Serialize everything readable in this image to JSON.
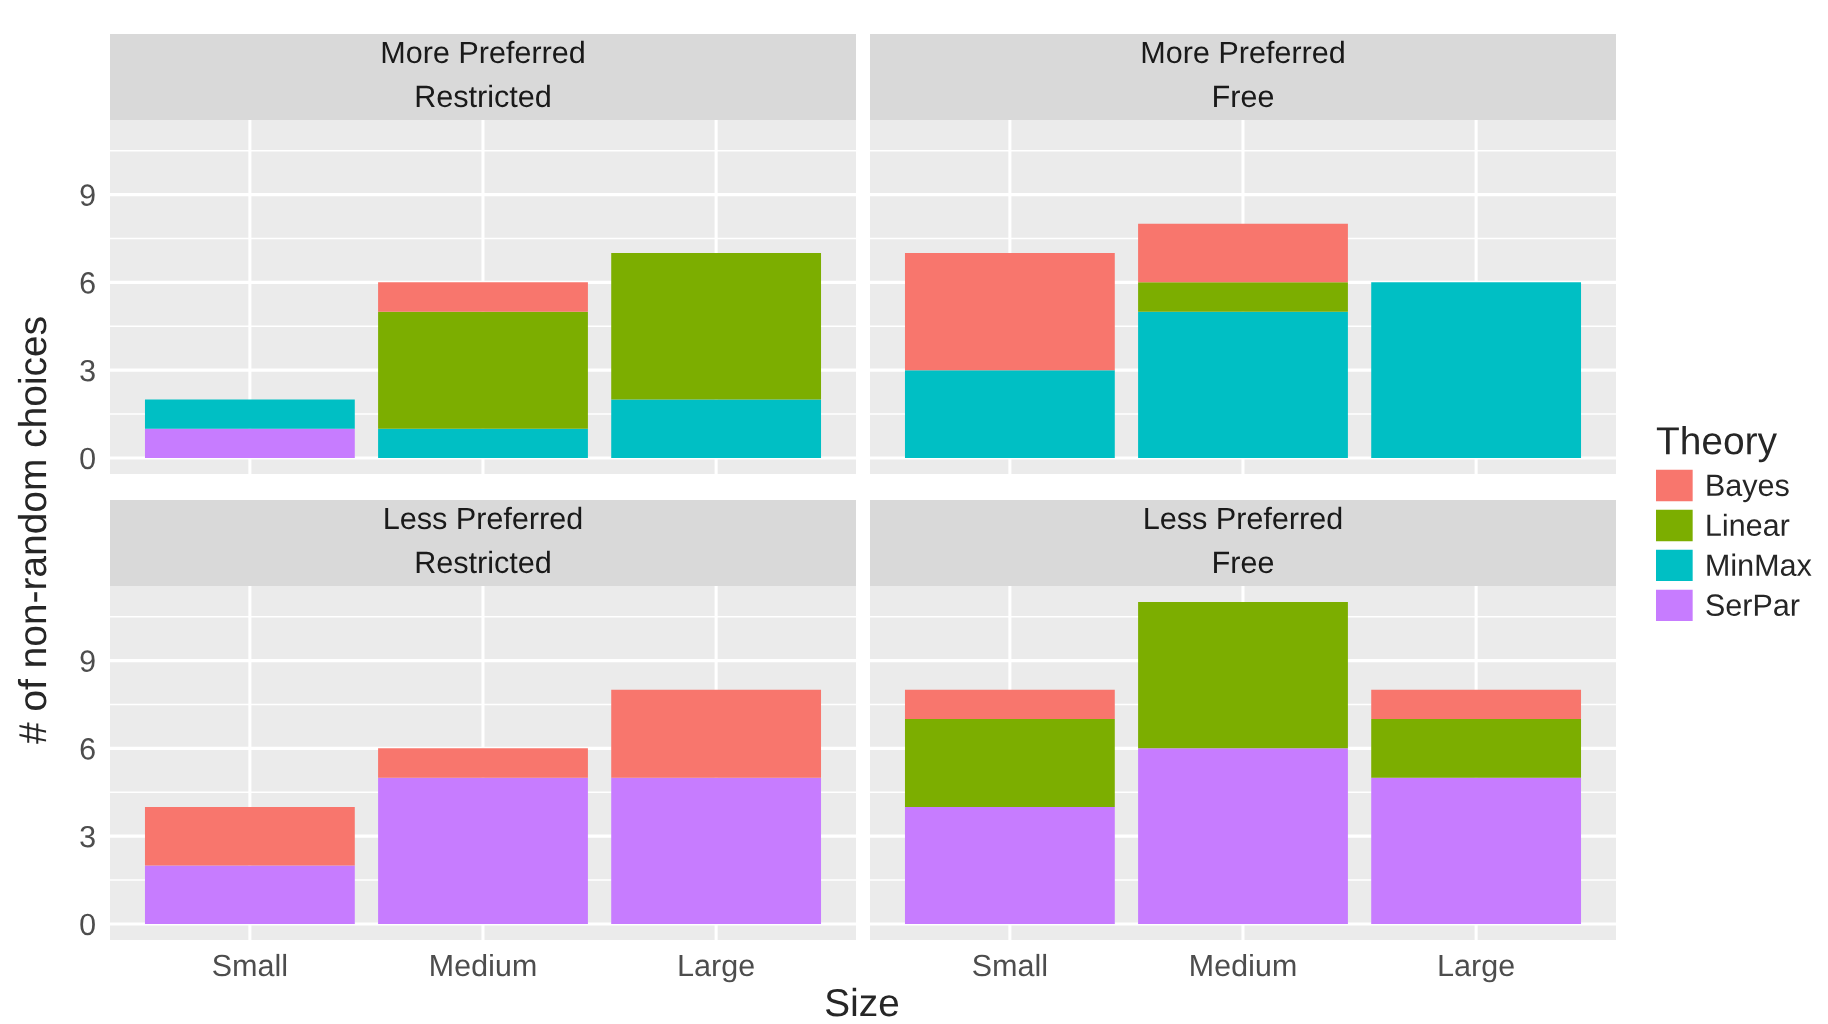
{
  "chart_data": [
    {
      "type": "bar",
      "stacked": true,
      "title": "More Preferred\nRestricted",
      "ylabel": "# of non-random choices",
      "categories": [
        "Small",
        "Medium",
        "Large"
      ],
      "ylim": [
        -0.55,
        11.55
      ],
      "yticks": [
        0,
        3,
        6,
        9
      ],
      "grid": true,
      "tick_labels": "y",
      "legend": "right",
      "legend_title": "Theory",
      "series": [
        {
          "name": "SerPar",
          "color": "#c77cff",
          "values": [
            1,
            null,
            null
          ]
        },
        {
          "name": "MinMax",
          "color": "#00bfc4",
          "values": [
            1,
            1,
            2
          ]
        },
        {
          "name": "Linear",
          "color": "#7cae00",
          "values": [
            null,
            4,
            5
          ]
        },
        {
          "name": "Bayes",
          "color": "#f8766d",
          "values": [
            null,
            1,
            null
          ]
        }
      ]
    },
    {
      "type": "bar",
      "stacked": true,
      "title": "More Preferred\nFree",
      "categories": [
        "Small",
        "Medium",
        "Large"
      ],
      "ylim": [
        -0.55,
        11.55
      ],
      "yticks": [
        0,
        3,
        6,
        9
      ],
      "grid": true,
      "tick_labels": false,
      "series": [
        {
          "name": "MinMax",
          "color": "#00bfc4",
          "values": [
            3,
            5,
            6
          ]
        },
        {
          "name": "Linear",
          "color": "#7cae00",
          "values": [
            null,
            1,
            null
          ]
        },
        {
          "name": "Bayes",
          "color": "#f8766d",
          "values": [
            4,
            2,
            null
          ]
        }
      ]
    },
    {
      "type": "bar",
      "stacked": true,
      "title": "Less Preferred\nRestricted",
      "xlabel": "Size",
      "categories": [
        "Small",
        "Medium",
        "Large"
      ],
      "ylim": [
        -0.55,
        11.55
      ],
      "yticks": [
        0,
        3,
        6,
        9
      ],
      "grid": true,
      "series": [
        {
          "name": "SerPar",
          "color": "#c77cff",
          "values": [
            2,
            5,
            5
          ]
        },
        {
          "name": "Bayes",
          "color": "#f8766d",
          "values": [
            2,
            1,
            3
          ]
        }
      ]
    },
    {
      "type": "bar",
      "stacked": true,
      "title": "Less Preferred\nFree",
      "categories": [
        "Small",
        "Medium",
        "Large"
      ],
      "ylim": [
        -0.55,
        11.55
      ],
      "yticks": [
        0,
        3,
        6,
        9
      ],
      "grid": true,
      "tick_labels": "x",
      "series": [
        {
          "name": "SerPar",
          "color": "#c77cff",
          "values": [
            4,
            6,
            5
          ]
        },
        {
          "name": "Linear",
          "color": "#7cae00",
          "values": [
            3,
            5,
            2
          ]
        },
        {
          "name": "Bayes",
          "color": "#f8766d",
          "values": [
            1,
            null,
            1
          ]
        }
      ]
    }
  ]
}
